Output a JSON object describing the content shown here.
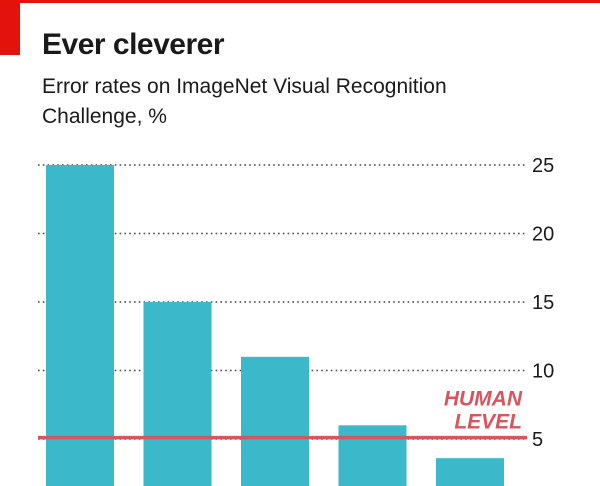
{
  "header": {
    "title": "Ever cleverer",
    "subtitle": "Error rates on ImageNet Visual Recognition Challenge, %"
  },
  "colors": {
    "bar": "#3bb8c9",
    "reference": "#d6555f",
    "accent": "#e3120b",
    "grid": "#444444",
    "text": "#1a1a1a"
  },
  "chart_data": {
    "type": "bar",
    "title": "Ever cleverer",
    "subtitle": "Error rates on ImageNet Visual Recognition Challenge, %",
    "xlabel": "",
    "ylabel": "",
    "values": [
      25,
      15,
      11,
      6,
      3.6
    ],
    "ylim": [
      0,
      25
    ],
    "yticks": [
      5,
      10,
      15,
      20,
      25
    ],
    "ytick_labels": [
      "5",
      "10",
      "15",
      "20",
      "25"
    ],
    "grid": true,
    "reference_line": {
      "value": 5.1,
      "label_lines": [
        "HUMAN",
        "LEVEL"
      ]
    }
  }
}
